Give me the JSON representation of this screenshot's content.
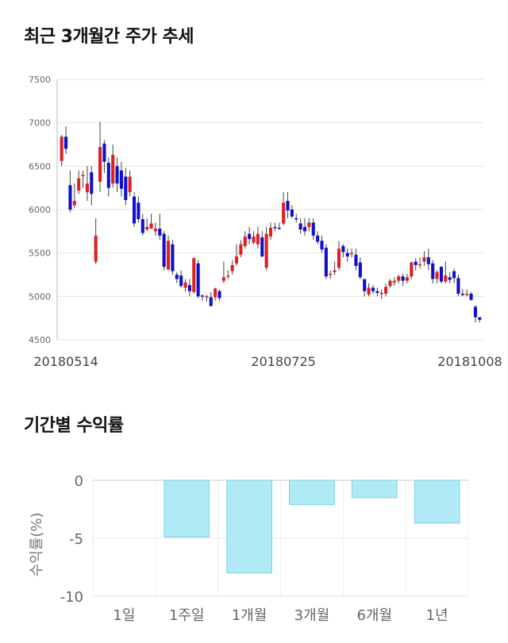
{
  "sections": {
    "price_title": "최근 3개월간 주가 추세",
    "return_title": "기간별 수익률"
  },
  "colors": {
    "up": "#e02020",
    "down": "#1010cc",
    "bar_fill": "#b0eaf4",
    "bar_stroke": "#7fd3e6",
    "grid": "#e6e6e6"
  },
  "chart_data": [
    {
      "type": "candlestick",
      "title": "최근 3개월간 주가 추세",
      "ylim": [
        4500,
        7500
      ],
      "y_ticks": [
        "7500",
        "7000",
        "6500",
        "6000",
        "5500",
        "5000",
        "4500"
      ],
      "x_tick_labels": [
        "20180514",
        "20180725",
        "20181008"
      ],
      "x_tick_index": [
        1,
        52,
        99
      ],
      "candles": [
        [
          6560,
          6840,
          6500,
          6860
        ],
        [
          6840,
          6700,
          6640,
          6960
        ],
        [
          6280,
          6000,
          5970,
          6450
        ],
        [
          6050,
          6100,
          6020,
          6300
        ],
        [
          6220,
          6360,
          6180,
          6450
        ],
        [
          6400,
          6400,
          6250,
          6450
        ],
        [
          6200,
          6300,
          6100,
          6500
        ],
        [
          6430,
          6180,
          6050,
          6500
        ],
        [
          5400,
          5700,
          5370,
          5900
        ],
        [
          6320,
          6720,
          6200,
          7010
        ],
        [
          6760,
          6550,
          6420,
          6800
        ],
        [
          6540,
          6250,
          6150,
          6600
        ],
        [
          6300,
          6630,
          6250,
          6750
        ],
        [
          6500,
          6300,
          6200,
          6600
        ],
        [
          6450,
          6240,
          6150,
          6550
        ],
        [
          6380,
          6110,
          6050,
          6480
        ],
        [
          6200,
          6380,
          6150,
          6450
        ],
        [
          6150,
          5840,
          5800,
          6200
        ],
        [
          6080,
          5890,
          5850,
          6150
        ],
        [
          5890,
          5730,
          5700,
          5950
        ],
        [
          5770,
          5800,
          5750,
          5900
        ],
        [
          5780,
          5840,
          5780,
          5950
        ],
        [
          5750,
          5780,
          5700,
          5850
        ],
        [
          5780,
          5700,
          5650,
          5950
        ],
        [
          5720,
          5340,
          5300,
          5750
        ],
        [
          5310,
          5640,
          5300,
          5700
        ],
        [
          5600,
          5290,
          5250,
          5650
        ],
        [
          5250,
          5200,
          5150,
          5280
        ],
        [
          5240,
          5120,
          5100,
          5300
        ],
        [
          5100,
          5160,
          5050,
          5200
        ],
        [
          5130,
          5060,
          5000,
          5200
        ],
        [
          5050,
          5440,
          5030,
          5450
        ],
        [
          5380,
          5000,
          4980,
          5420
        ],
        [
          5010,
          5000,
          4950,
          5020
        ],
        [
          4990,
          5000,
          4940,
          5020
        ],
        [
          4990,
          4890,
          4880,
          5050
        ],
        [
          4990,
          5090,
          4950,
          5100
        ],
        [
          5060,
          4980,
          4950,
          5080
        ],
        [
          5180,
          5220,
          5150,
          5400
        ],
        [
          5240,
          5240,
          5200,
          5300
        ],
        [
          5290,
          5360,
          5250,
          5420
        ],
        [
          5380,
          5460,
          5350,
          5600
        ],
        [
          5480,
          5600,
          5450,
          5650
        ],
        [
          5580,
          5690,
          5550,
          5750
        ],
        [
          5720,
          5660,
          5600,
          5800
        ],
        [
          5620,
          5690,
          5600,
          5750
        ],
        [
          5600,
          5720,
          5550,
          5800
        ],
        [
          5680,
          5460,
          5450,
          5750
        ],
        [
          5330,
          5720,
          5300,
          5800
        ],
        [
          5690,
          5790,
          5650,
          5850
        ],
        [
          5800,
          5790,
          5750,
          5850
        ],
        [
          5790,
          5780,
          5770,
          5850
        ],
        [
          5840,
          6080,
          5820,
          6200
        ],
        [
          6100,
          5990,
          5900,
          6200
        ],
        [
          6000,
          5920,
          5900,
          6050
        ],
        [
          5900,
          5890,
          5850,
          5950
        ],
        [
          5840,
          5770,
          5720,
          5900
        ],
        [
          5800,
          5750,
          5700,
          5900
        ],
        [
          5800,
          5850,
          5750,
          5900
        ],
        [
          5850,
          5700,
          5650,
          5900
        ],
        [
          5700,
          5630,
          5600,
          5750
        ],
        [
          5640,
          5540,
          5500,
          5700
        ],
        [
          5560,
          5230,
          5200,
          5600
        ],
        [
          5250,
          5260,
          5200,
          5300
        ],
        [
          5280,
          5300,
          5250,
          5400
        ],
        [
          5330,
          5550,
          5300,
          5640
        ],
        [
          5580,
          5510,
          5450,
          5600
        ],
        [
          5500,
          5460,
          5400,
          5550
        ],
        [
          5490,
          5500,
          5450,
          5550
        ],
        [
          5480,
          5350,
          5300,
          5550
        ],
        [
          5390,
          5220,
          5200,
          5450
        ],
        [
          5200,
          5060,
          5000,
          5200
        ],
        [
          5020,
          5100,
          5000,
          5150
        ],
        [
          5100,
          5060,
          5030,
          5130
        ],
        [
          5060,
          5040,
          5000,
          5100
        ],
        [
          5040,
          5040,
          4970,
          5080
        ],
        [
          5030,
          5110,
          5000,
          5150
        ],
        [
          5120,
          5180,
          5100,
          5200
        ],
        [
          5160,
          5180,
          5120,
          5220
        ],
        [
          5180,
          5230,
          5150,
          5250
        ],
        [
          5230,
          5180,
          5120,
          5260
        ],
        [
          5180,
          5220,
          5150,
          5260
        ],
        [
          5230,
          5390,
          5200,
          5400
        ],
        [
          5400,
          5360,
          5300,
          5440
        ],
        [
          5360,
          5370,
          5320,
          5450
        ],
        [
          5400,
          5450,
          5350,
          5520
        ],
        [
          5450,
          5370,
          5300,
          5550
        ],
        [
          5380,
          5200,
          5150,
          5420
        ],
        [
          5200,
          5280,
          5150,
          5300
        ],
        [
          5340,
          5170,
          5150,
          5350
        ],
        [
          5170,
          5240,
          5150,
          5400
        ],
        [
          5220,
          5190,
          5150,
          5280
        ],
        [
          5290,
          5210,
          5150,
          5320
        ],
        [
          5210,
          5030,
          5000,
          5250
        ],
        [
          5030,
          5020,
          5000,
          5080
        ],
        [
          5020,
          5030,
          5000,
          5080
        ],
        [
          5030,
          4960,
          4950,
          5050
        ],
        [
          4880,
          4760,
          4700,
          4900
        ],
        [
          4760,
          4730,
          4700,
          4750
        ]
      ]
    },
    {
      "type": "bar",
      "title": "기간별 수익률",
      "ylabel": "수익률(%)",
      "categories": [
        "1일",
        "1주일",
        "1개월",
        "3개월",
        "6개월",
        "1년"
      ],
      "values": [
        0,
        -4.9,
        -8.0,
        -2.1,
        -1.5,
        -3.7
      ],
      "ylim": [
        -10,
        0
      ],
      "y_ticks": [
        "0",
        "-5",
        "-10"
      ]
    }
  ]
}
